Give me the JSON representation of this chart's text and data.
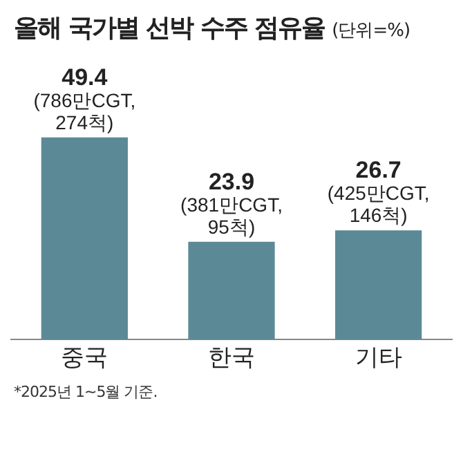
{
  "chart_data": {
    "type": "bar",
    "title": "올해 국가별 선박 수주 점유율",
    "subtitle": "(단위=%)",
    "categories": [
      "중국",
      "한국",
      "기타"
    ],
    "values": [
      49.4,
      23.9,
      26.7
    ],
    "color": "#5b8a96",
    "data_labels": true,
    "annotations": [
      {
        "text": "(786만CGT,",
        "x": "중국",
        "y": 49.4
      },
      {
        "text": "274척)",
        "x": "중국",
        "y": 49.4
      },
      {
        "text": "(381만CGT,",
        "x": "한국",
        "y": 23.9
      },
      {
        "text": "95척)",
        "x": "한국",
        "y": 23.9
      },
      {
        "text": "(425만CGT,",
        "x": "기타",
        "y": 26.7
      },
      {
        "text": "146척)",
        "x": "기타",
        "y": 26.7
      },
      "*2025년 1~5월 기준."
    ],
    "grid": false,
    "legend": false
  }
}
